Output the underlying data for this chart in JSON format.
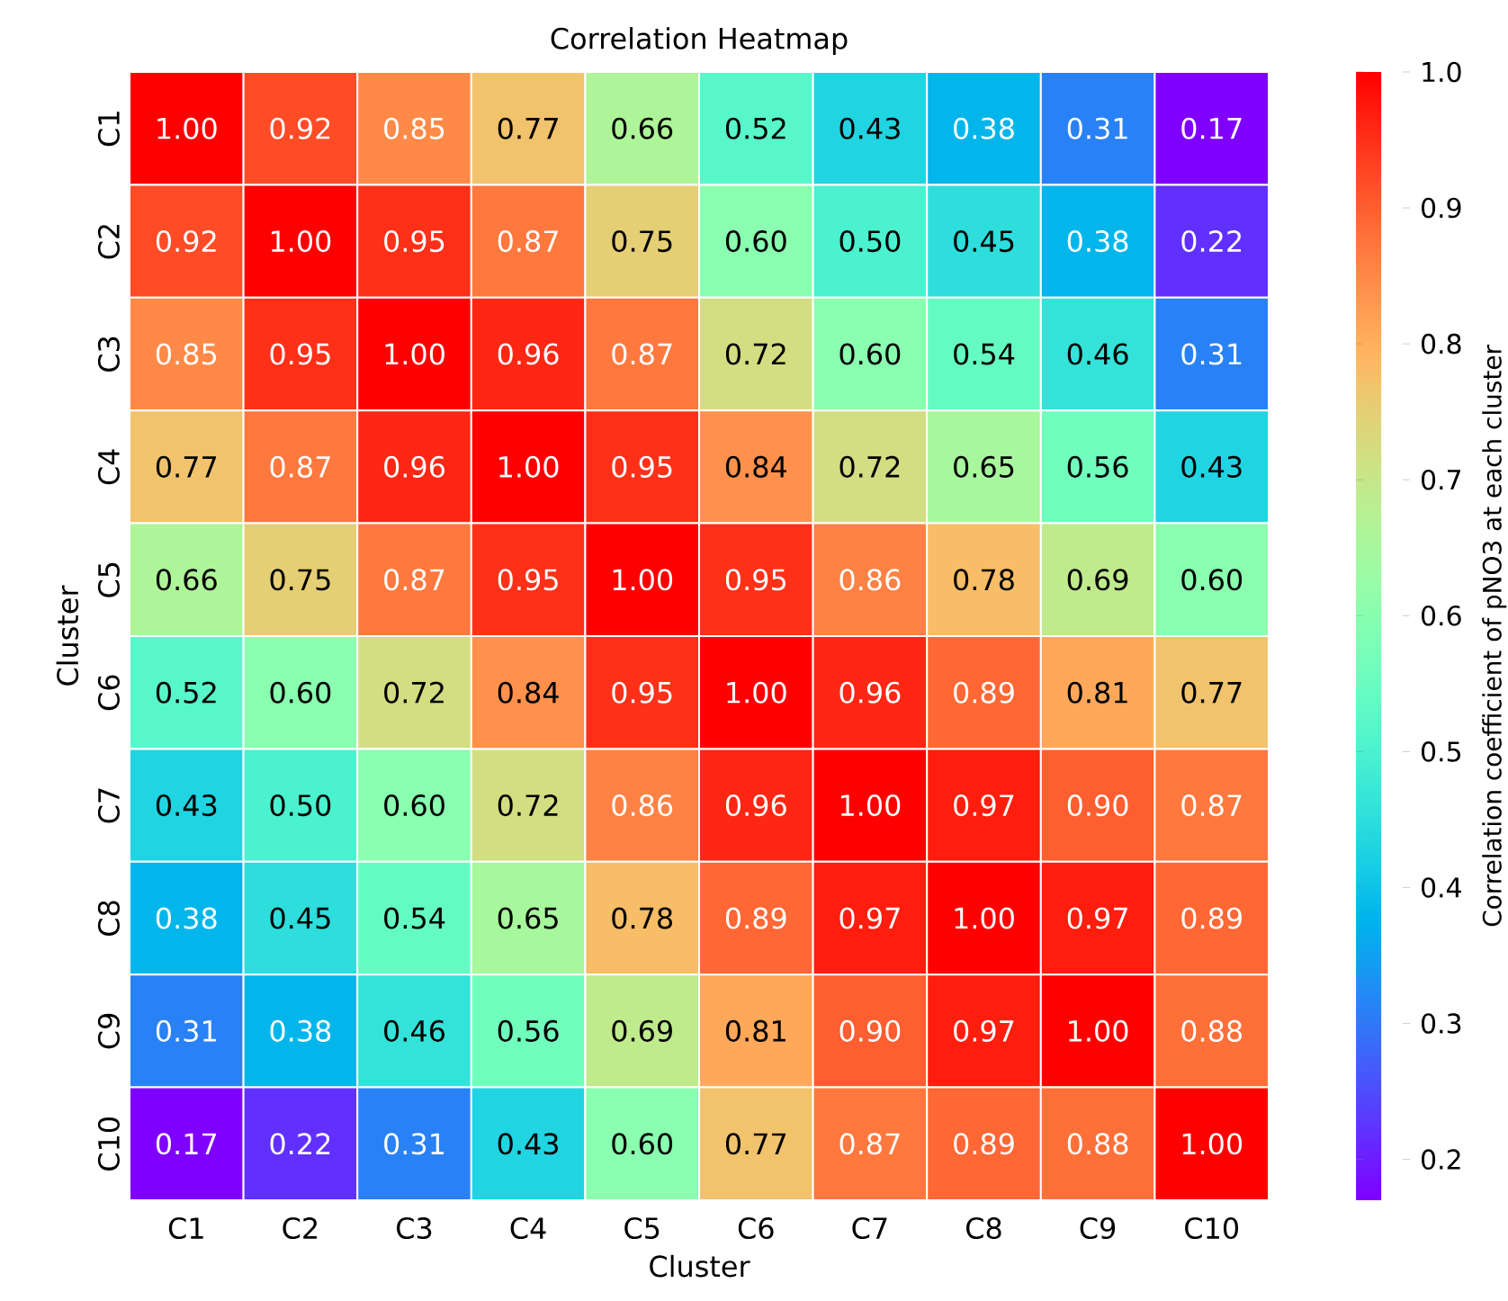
{
  "chart_data": {
    "type": "heatmap",
    "title": "Correlation Heatmap",
    "xlabel": "Cluster",
    "ylabel": "Cluster",
    "clabel": "Correlation coefficient of pNO3 at each cluster",
    "categories": [
      "C1",
      "C2",
      "C3",
      "C4",
      "C5",
      "C6",
      "C7",
      "C8",
      "C9",
      "C10"
    ],
    "y_categories": [
      "C1",
      "C2",
      "C3",
      "C4",
      "C5",
      "C6",
      "C7",
      "C8",
      "C9",
      "C10"
    ],
    "cells": [
      [
        1.0,
        0.92,
        0.85,
        0.77,
        0.66,
        0.52,
        0.43,
        0.38,
        0.31,
        0.17
      ],
      [
        0.92,
        1.0,
        0.95,
        0.87,
        0.75,
        0.6,
        0.5,
        0.45,
        0.38,
        0.22
      ],
      [
        0.85,
        0.95,
        1.0,
        0.96,
        0.87,
        0.72,
        0.6,
        0.54,
        0.46,
        0.31
      ],
      [
        0.77,
        0.87,
        0.96,
        1.0,
        0.95,
        0.84,
        0.72,
        0.65,
        0.56,
        0.43
      ],
      [
        0.66,
        0.75,
        0.87,
        0.95,
        1.0,
        0.95,
        0.86,
        0.78,
        0.69,
        0.6
      ],
      [
        0.52,
        0.6,
        0.72,
        0.84,
        0.95,
        1.0,
        0.96,
        0.89,
        0.81,
        0.77
      ],
      [
        0.43,
        0.5,
        0.6,
        0.72,
        0.86,
        0.96,
        1.0,
        0.97,
        0.9,
        0.87
      ],
      [
        0.38,
        0.45,
        0.54,
        0.65,
        0.78,
        0.89,
        0.97,
        1.0,
        0.97,
        0.89
      ],
      [
        0.31,
        0.38,
        0.46,
        0.56,
        0.69,
        0.81,
        0.9,
        0.97,
        1.0,
        0.88
      ],
      [
        0.17,
        0.22,
        0.31,
        0.43,
        0.6,
        0.77,
        0.87,
        0.89,
        0.88,
        1.0
      ]
    ],
    "cell_labels": [
      [
        "1.00",
        "0.92",
        "0.85",
        "0.77",
        "0.66",
        "0.52",
        "0.43",
        "0.38",
        "0.31",
        "0.17"
      ],
      [
        "0.92",
        "1.00",
        "0.95",
        "0.87",
        "0.75",
        "0.60",
        "0.50",
        "0.45",
        "0.38",
        "0.22"
      ],
      [
        "0.85",
        "0.95",
        "1.00",
        "0.96",
        "0.87",
        "0.72",
        "0.60",
        "0.54",
        "0.46",
        "0.31"
      ],
      [
        "0.77",
        "0.87",
        "0.96",
        "1.00",
        "0.95",
        "0.84",
        "0.72",
        "0.65",
        "0.56",
        "0.43"
      ],
      [
        "0.66",
        "0.75",
        "0.87",
        "0.95",
        "1.00",
        "0.95",
        "0.86",
        "0.78",
        "0.69",
        "0.60"
      ],
      [
        "0.52",
        "0.60",
        "0.72",
        "0.84",
        "0.95",
        "1.00",
        "0.96",
        "0.89",
        "0.81",
        "0.77"
      ],
      [
        "0.43",
        "0.50",
        "0.60",
        "0.72",
        "0.86",
        "0.96",
        "1.00",
        "0.97",
        "0.90",
        "0.87"
      ],
      [
        "0.38",
        "0.45",
        "0.54",
        "0.65",
        "0.78",
        "0.89",
        "0.97",
        "1.00",
        "0.97",
        "0.89"
      ],
      [
        "0.31",
        "0.38",
        "0.46",
        "0.56",
        "0.69",
        "0.81",
        "0.90",
        "0.97",
        "1.00",
        "0.88"
      ],
      [
        "0.17",
        "0.22",
        "0.31",
        "0.43",
        "0.60",
        "0.77",
        "0.87",
        "0.89",
        "0.88",
        "1.00"
      ]
    ],
    "clim": [
      0.17,
      1.0
    ],
    "cticks": [
      0.2,
      0.3,
      0.4,
      0.5,
      0.6,
      0.7,
      0.8,
      0.9,
      {
        "value": 1.0,
        "label": "1.0"
      }
    ]
  }
}
